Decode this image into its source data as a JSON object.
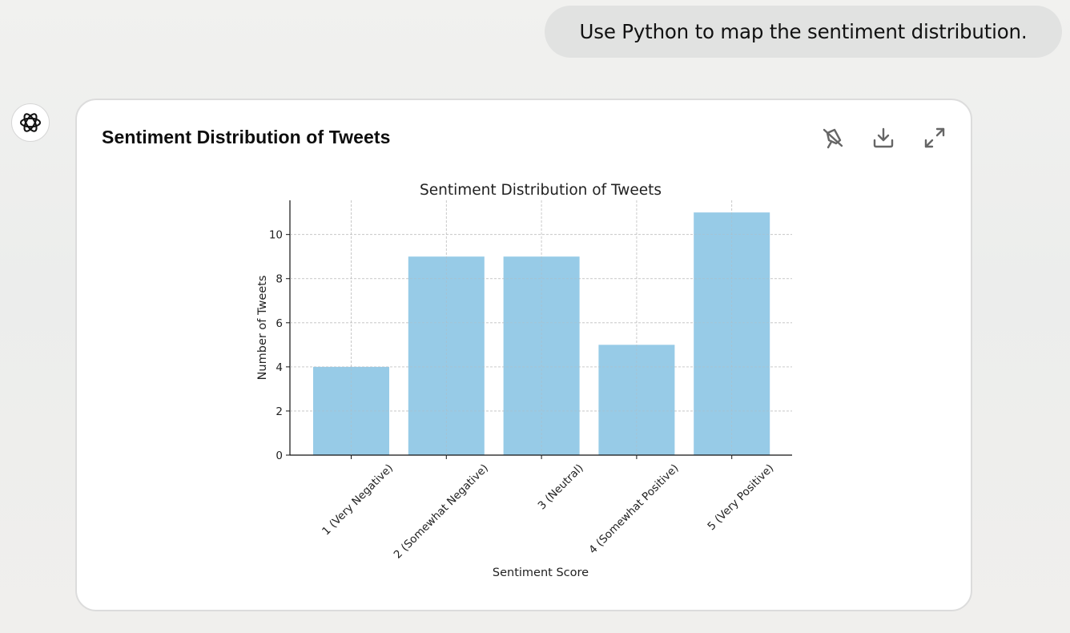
{
  "conversation": {
    "user_message": "Use Python to map the sentiment distribution."
  },
  "assistant": {
    "avatar_icon": "openai-logo-icon"
  },
  "card": {
    "title": "Sentiment Distribution of Tweets",
    "actions": [
      {
        "name": "pin-chart-button",
        "icon": "pin-off-icon"
      },
      {
        "name": "download-button",
        "icon": "download-icon"
      },
      {
        "name": "expand-button",
        "icon": "expand-icon"
      }
    ]
  },
  "chart_data": {
    "type": "bar",
    "title": "Sentiment Distribution of Tweets",
    "xlabel": "Sentiment Score",
    "ylabel": "Number of Tweets",
    "categories": [
      "1 (Very Negative)",
      "2 (Somewhat Negative)",
      "3 (Neutral)",
      "4 (Somewhat Positive)",
      "5 (Very Positive)"
    ],
    "values": [
      4,
      9,
      9,
      5,
      11
    ],
    "ylim": [
      0,
      11.55
    ],
    "yticks": [
      0,
      2,
      4,
      6,
      8,
      10
    ],
    "grid": true,
    "bar_color": "#97cbe7",
    "grid_color": "#c8c8c8"
  }
}
